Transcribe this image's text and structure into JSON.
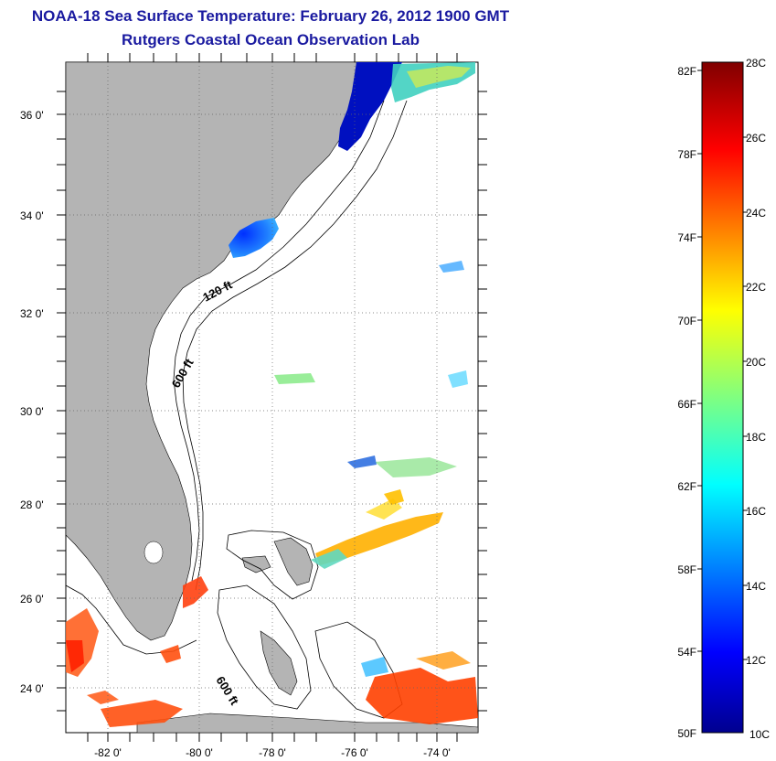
{
  "header": {
    "title_line1": "NOAA-18 Sea Surface Temperature:  February 26, 2012 1900 GMT",
    "title_line2": "Rutgers Coastal Ocean Observation Lab"
  },
  "map": {
    "lat_ticks": [
      "36 0'",
      "34 0'",
      "32 0'",
      "30 0'",
      "28 0'",
      "26 0'",
      "24 0'"
    ],
    "lon_ticks": [
      "-82 0'",
      "-80 0'",
      "-78 0'",
      "-76 0'",
      "-74 0'"
    ],
    "lat_range": [
      23,
      37
    ],
    "lon_range": [
      -83,
      -73
    ],
    "contour_labels": [
      "120 ft",
      "600 ft",
      "600 ft"
    ],
    "land_color": "#b4b4b4",
    "grid": "dotted"
  },
  "colorbar": {
    "fahrenheit_labels": [
      "82F",
      "78F",
      "74F",
      "70F",
      "66F",
      "62F",
      "58F",
      "54F",
      "50F"
    ],
    "celsius_labels": [
      "28C",
      "26C",
      "24C",
      "22C",
      "20C",
      "18C",
      "16C",
      "14C",
      "12C",
      "10C"
    ],
    "range_c": [
      10,
      28
    ],
    "colormap": "jet"
  }
}
